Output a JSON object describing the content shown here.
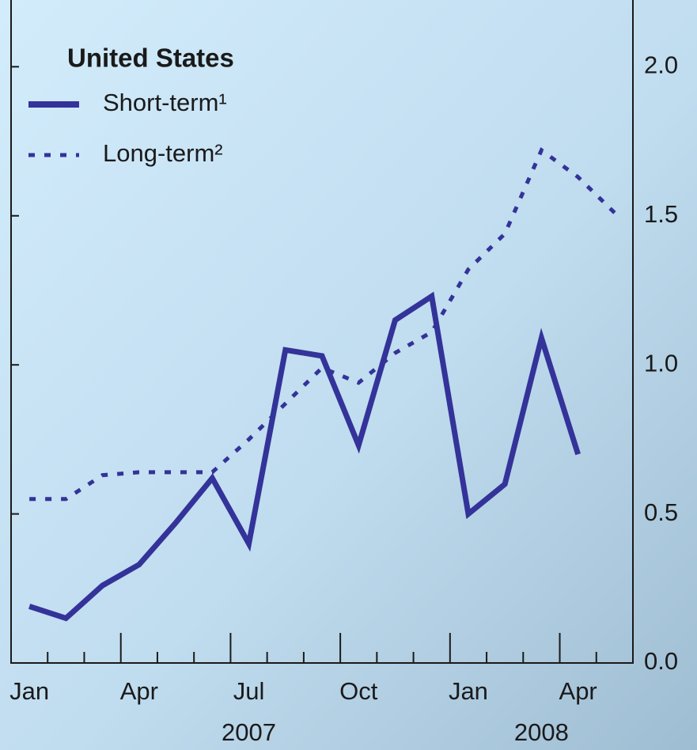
{
  "chart_data": {
    "type": "line",
    "title": "United States",
    "categories": [
      "Jan",
      null,
      null,
      "Apr",
      null,
      null,
      "Jul",
      null,
      null,
      "Oct",
      null,
      null,
      "Jan",
      null,
      null,
      "Apr",
      null
    ],
    "year_labels": [
      "2007",
      "2008"
    ],
    "series": [
      {
        "name": "Short-term¹",
        "color": "#333399",
        "style": "solid",
        "values": [
          0.19,
          0.15,
          0.26,
          0.33,
          0.47,
          0.62,
          0.4,
          1.05,
          1.03,
          0.73,
          1.15,
          1.23,
          0.5,
          0.6,
          1.09,
          0.7,
          null
        ]
      },
      {
        "name": "Long-term²",
        "color": "#333399",
        "style": "dotted",
        "values": [
          0.55,
          0.55,
          0.63,
          0.64,
          0.64,
          0.64,
          0.75,
          0.87,
          0.99,
          0.94,
          1.04,
          1.11,
          1.32,
          1.44,
          1.72,
          1.63,
          1.51
        ]
      }
    ],
    "ylim": [
      0,
      2.2
    ],
    "yticks": [
      {
        "value": 0,
        "label": "0.0"
      },
      0.5,
      {
        "value": 1,
        "label": "1.0"
      },
      1.5,
      {
        "value": 2,
        "label": "2.0"
      }
    ],
    "y_axis_side": "right",
    "grid": false
  }
}
